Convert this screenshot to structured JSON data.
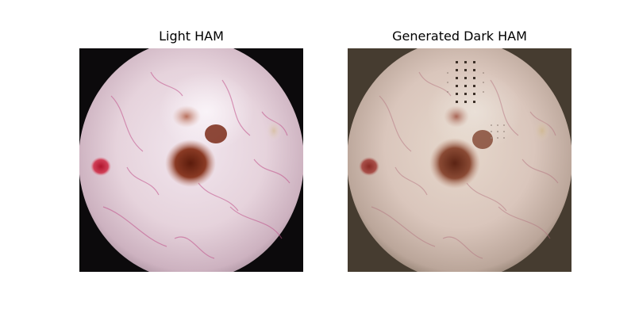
{
  "figure": {
    "panels": [
      {
        "title": "Light HAM"
      },
      {
        "title": "Generated Dark HAM"
      }
    ]
  },
  "colors": {
    "background": "#ffffff",
    "left_vignette": "#0c0a0c",
    "right_vignette": "#463c30",
    "left_skin": "#e9d6dc",
    "right_skin": "#dcc8bf",
    "lesion": "#7a2a18",
    "red_spot": "#c0243a"
  }
}
